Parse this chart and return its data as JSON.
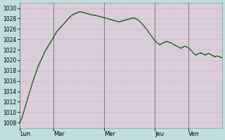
{
  "background_color": "#c0dede",
  "plot_bg_color": "#ddd0dd",
  "grid_major_color": "#c8b8c8",
  "grid_minor_color": "#d8c8d8",
  "line_color": "#1a5c1a",
  "line_width": 0.9,
  "ylim": [
    1007,
    1031
  ],
  "yticks": [
    1008,
    1010,
    1012,
    1014,
    1016,
    1018,
    1020,
    1022,
    1024,
    1026,
    1028,
    1030
  ],
  "day_labels": [
    "Lun",
    "Mar",
    "Mer",
    "Jeu",
    "Ven"
  ],
  "day_positions": [
    0,
    0.167,
    0.417,
    0.667,
    0.833
  ],
  "vline_color": "#707070",
  "tick_fontsize": 5.5,
  "day_fontsize": 6.0,
  "pressure_data": [
    1008.0,
    1008.3,
    1008.7,
    1009.2,
    1009.8,
    1010.4,
    1011.0,
    1011.6,
    1012.2,
    1012.8,
    1013.4,
    1014.0,
    1014.6,
    1015.2,
    1015.8,
    1016.3,
    1016.9,
    1017.4,
    1017.9,
    1018.4,
    1018.9,
    1019.3,
    1019.7,
    1020.1,
    1020.5,
    1020.9,
    1021.3,
    1021.7,
    1022.0,
    1022.3,
    1022.6,
    1022.9,
    1023.2,
    1023.5,
    1023.8,
    1024.1,
    1024.4,
    1024.7,
    1025.0,
    1025.3,
    1025.6,
    1025.8,
    1026.0,
    1026.2,
    1026.4,
    1026.6,
    1026.8,
    1027.0,
    1027.2,
    1027.4,
    1027.6,
    1027.8,
    1028.0,
    1028.2,
    1028.4,
    1028.55,
    1028.7,
    1028.8,
    1028.9,
    1029.0,
    1029.05,
    1029.1,
    1029.2,
    1029.25,
    1029.3,
    1029.3,
    1029.25,
    1029.2,
    1029.15,
    1029.1,
    1029.05,
    1029.0,
    1028.95,
    1028.9,
    1028.85,
    1028.8,
    1028.75,
    1028.7,
    1028.7,
    1028.65,
    1028.65,
    1028.6,
    1028.55,
    1028.5,
    1028.45,
    1028.4,
    1028.35,
    1028.3,
    1028.25,
    1028.2,
    1028.15,
    1028.1,
    1028.05,
    1028.0,
    1027.95,
    1027.9,
    1027.85,
    1027.8,
    1027.75,
    1027.7,
    1027.65,
    1027.6,
    1027.55,
    1027.5,
    1027.45,
    1027.4,
    1027.4,
    1027.45,
    1027.5,
    1027.55,
    1027.6,
    1027.65,
    1027.7,
    1027.75,
    1027.8,
    1027.85,
    1027.9,
    1027.95,
    1028.0,
    1028.05,
    1028.1,
    1028.15,
    1028.1,
    1028.0,
    1027.9,
    1027.8,
    1027.7,
    1027.55,
    1027.4,
    1027.2,
    1027.0,
    1026.8,
    1026.6,
    1026.4,
    1026.15,
    1025.9,
    1025.65,
    1025.4,
    1025.15,
    1024.9,
    1024.65,
    1024.4,
    1024.15,
    1023.9,
    1023.7,
    1023.5,
    1023.35,
    1023.2,
    1023.1,
    1023.0,
    1023.1,
    1023.2,
    1023.3,
    1023.4,
    1023.5,
    1023.55,
    1023.6,
    1023.55,
    1023.5,
    1023.45,
    1023.4,
    1023.3,
    1023.2,
    1023.1,
    1023.0,
    1022.9,
    1022.8,
    1022.7,
    1022.6,
    1022.5,
    1022.4,
    1022.3,
    1022.4,
    1022.5,
    1022.6,
    1022.7,
    1022.65,
    1022.6,
    1022.5,
    1022.4,
    1022.25,
    1022.1,
    1021.9,
    1021.7,
    1021.5,
    1021.3,
    1021.15,
    1021.0,
    1021.1,
    1021.2,
    1021.3,
    1021.35,
    1021.4,
    1021.35,
    1021.3,
    1021.2,
    1021.1,
    1021.0,
    1021.1,
    1021.2,
    1021.3,
    1021.3,
    1021.2,
    1021.1,
    1021.0,
    1020.9,
    1020.8,
    1020.7,
    1020.7,
    1020.8,
    1020.8,
    1020.75,
    1020.7,
    1020.6,
    1020.5,
    1020.5
  ]
}
